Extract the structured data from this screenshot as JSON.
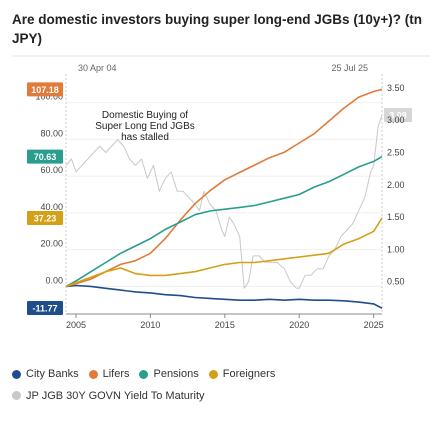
{
  "title": "Are domestic investors buying super long-end JGBs (10y+)? (tn JPY)",
  "chart_data": {
    "type": "line",
    "date_markers": [
      "30 Apr 04",
      "25 Jul 25"
    ],
    "annotation": "Domestic Buying of Super Long End JGBs has stalled",
    "annotation_lines": [
      "Domestic Buying of",
      "Super Long End JGBs",
      "has stalled"
    ],
    "x_ticks": [
      "2005",
      "2010",
      "2015",
      "2020",
      "2025"
    ],
    "x_range": [
      2004.33,
      2025.56
    ],
    "y_left": {
      "ticks": [
        "0.00",
        "20.00",
        "40.00",
        "60.00",
        "80.00",
        "100.00"
      ],
      "ylim": [
        -15,
        115
      ]
    },
    "y_right": {
      "ticks": [
        "0.50",
        "1.00",
        "1.50",
        "2.00",
        "2.50",
        "3.00",
        "3.50"
      ],
      "ylim": [
        0.0,
        3.7
      ]
    },
    "series": [
      {
        "name": "City Banks",
        "axis": "left",
        "color": "#1f4e8c",
        "last_label": "-11.77",
        "x": [
          2004.33,
          2005,
          2006,
          2007,
          2008,
          2009,
          2010,
          2011,
          2012,
          2013,
          2014,
          2015,
          2016,
          2017,
          2018,
          2019,
          2020,
          2021,
          2022,
          2023,
          2024,
          2025,
          2025.56
        ],
        "y": [
          0,
          0.5,
          0,
          -1,
          -2,
          -3,
          -3.5,
          -4.5,
          -5,
          -6,
          -6.5,
          -7,
          -7.5,
          -7.5,
          -7,
          -7.5,
          -7,
          -7.5,
          -7.5,
          -7.8,
          -8.5,
          -9.5,
          -11.77
        ]
      },
      {
        "name": "Lifers",
        "axis": "left",
        "color": "#e07b39",
        "last_label": "107.18",
        "x": [
          2004.33,
          2005,
          2006,
          2007,
          2008,
          2009,
          2010,
          2011,
          2012,
          2013,
          2014,
          2015,
          2016,
          2017,
          2018,
          2019,
          2020,
          2021,
          2022,
          2023,
          2024,
          2025,
          2025.56
        ],
        "y": [
          0,
          1.5,
          4,
          8,
          12,
          14,
          18,
          26,
          36,
          45,
          52,
          58,
          62,
          66,
          70,
          73,
          78,
          83,
          90,
          97,
          103,
          106,
          107.18
        ]
      },
      {
        "name": "Pensions",
        "axis": "left",
        "color": "#2a9d8f",
        "last_label": "70.63",
        "x": [
          2004.33,
          2005,
          2006,
          2007,
          2008,
          2009,
          2010,
          2011,
          2012,
          2013,
          2014,
          2015,
          2016,
          2017,
          2018,
          2019,
          2020,
          2021,
          2022,
          2023,
          2024,
          2025,
          2025.56
        ],
        "y": [
          0,
          3,
          8,
          13,
          18,
          22,
          26,
          31,
          35,
          39,
          41,
          42,
          43,
          44,
          46,
          48,
          50,
          54,
          57,
          61,
          65,
          68,
          70.63
        ]
      },
      {
        "name": "Foreigners",
        "axis": "left",
        "color": "#d4a017",
        "last_label": "37.23",
        "x": [
          2004.33,
          2005,
          2006,
          2007,
          2008,
          2009,
          2010,
          2011,
          2012,
          2013,
          2014,
          2015,
          2016,
          2017,
          2018,
          2019,
          2020,
          2021,
          2022,
          2023,
          2024,
          2025,
          2025.56
        ],
        "y": [
          0,
          2,
          5,
          8,
          10,
          7,
          6,
          6,
          7,
          8,
          10,
          12,
          13,
          13,
          14,
          15,
          16,
          17,
          18,
          23,
          26,
          30,
          37.23
        ]
      },
      {
        "name": "JP JGB 30Y GOVN Yield To Maturity",
        "axis": "right",
        "color": "#c8c8c8",
        "last_label": "3.08",
        "x": [
          2004.33,
          2004.7,
          2005,
          2005.4,
          2005.8,
          2006.2,
          2006.6,
          2007,
          2007.4,
          2007.8,
          2008.2,
          2008.6,
          2009,
          2009.4,
          2009.8,
          2010.2,
          2010.6,
          2011,
          2011.4,
          2011.8,
          2012.2,
          2012.6,
          2013,
          2013.3,
          2013.6,
          2014,
          2014.4,
          2014.8,
          2015,
          2015.3,
          2015.6,
          2016,
          2016.3,
          2016.6,
          2016.9,
          2017.3,
          2017.7,
          2018,
          2018.5,
          2019,
          2019.4,
          2019.8,
          2020,
          2020.4,
          2020.8,
          2021.2,
          2021.6,
          2022,
          2022.4,
          2022.8,
          2023.2,
          2023.6,
          2024,
          2024.4,
          2024.8,
          2025,
          2025.3,
          2025.56
        ],
        "y": [
          2.3,
          2.4,
          2.2,
          2.3,
          2.4,
          2.5,
          2.6,
          2.5,
          2.6,
          2.7,
          2.6,
          2.4,
          2.3,
          2.4,
          2.1,
          2.3,
          1.9,
          2.1,
          2.2,
          1.9,
          1.9,
          1.8,
          1.7,
          1.6,
          1.9,
          1.7,
          1.6,
          1.3,
          1.2,
          1.5,
          1.4,
          1.2,
          0.4,
          0.5,
          0.9,
          0.9,
          0.8,
          0.8,
          0.8,
          0.7,
          0.5,
          0.4,
          0.4,
          0.6,
          0.6,
          0.7,
          0.7,
          0.9,
          1.0,
          1.2,
          1.3,
          1.4,
          1.6,
          1.8,
          2.2,
          2.3,
          2.9,
          3.08
        ]
      }
    ]
  }
}
